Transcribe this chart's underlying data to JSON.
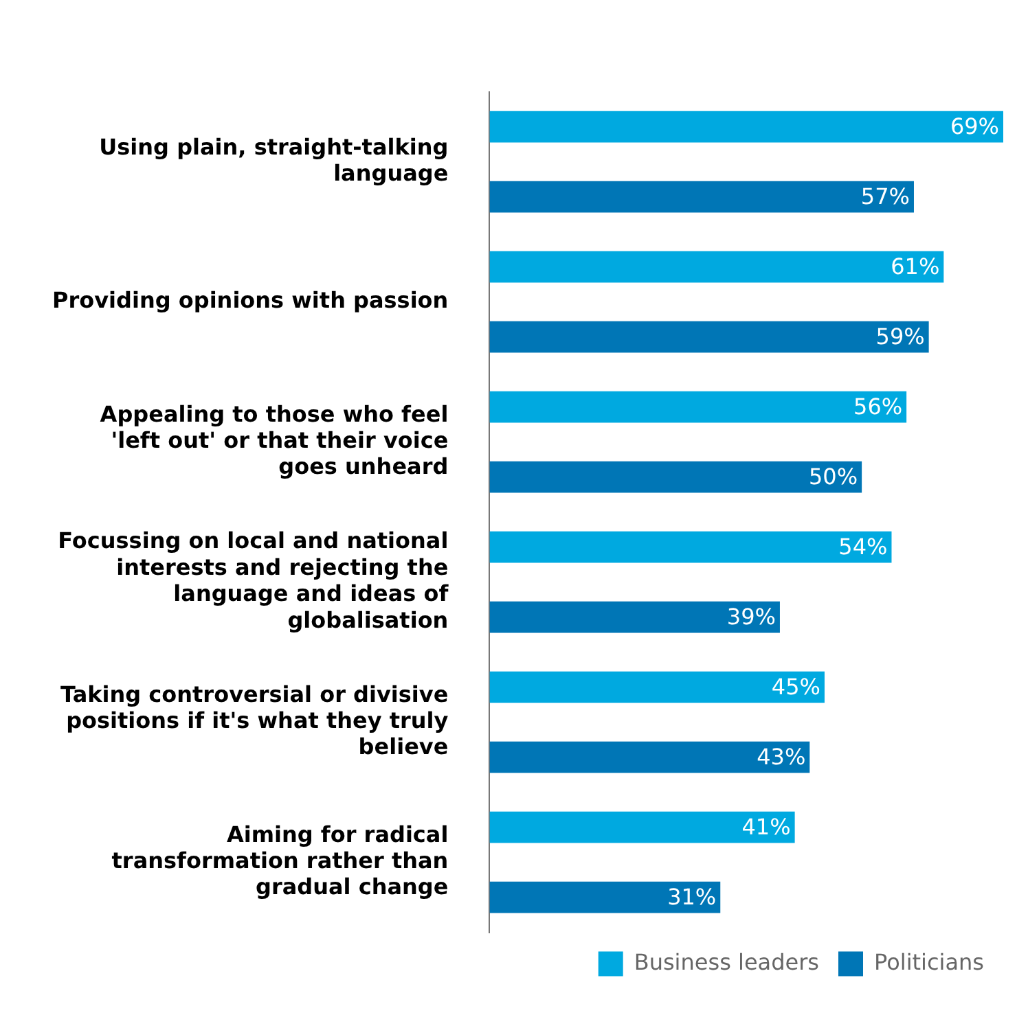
{
  "chart_data": {
    "type": "bar",
    "orientation": "horizontal",
    "categories": [
      "Using plain, straight-talking language",
      "Providing opinions with passion",
      "Appealing to those who feel 'left out' or that their voice goes unheard",
      "Focussing on local and national interests and rejecting the language and ideas of globalisation",
      "Taking controversial or divisive positions if it's what they truly believe",
      "Aiming for radical transformation rather than gradual change"
    ],
    "series": [
      {
        "name": "Business leaders",
        "color": "#00a9e0",
        "values": [
          69,
          61,
          56,
          54,
          45,
          41
        ],
        "value_labels": [
          "69%",
          "61%",
          "56%",
          "54%",
          "45%",
          "41%"
        ]
      },
      {
        "name": "Politicians",
        "color": "#0076b6",
        "values": [
          57,
          59,
          50,
          39,
          43,
          31
        ],
        "value_labels": [
          "57%",
          "59%",
          "50%",
          "39%",
          "43%",
          "31%"
        ]
      }
    ],
    "legend": "bottom"
  }
}
